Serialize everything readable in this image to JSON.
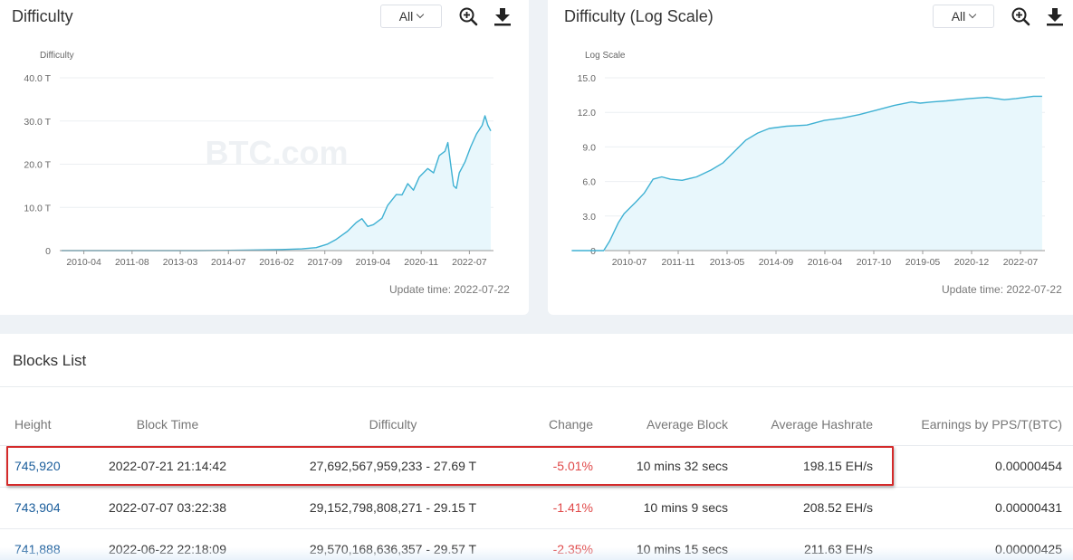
{
  "left_chart": {
    "title": "Difficulty",
    "range_selected": "All",
    "update_time": "Update time: 2022-07-22",
    "watermark": "BTC.com",
    "zoom_icon": "zoom-in-icon",
    "download_icon": "download-icon",
    "chart_data": {
      "type": "area",
      "ylabel": "Difficulty",
      "ylim": [
        0,
        40
      ],
      "y_ticks": [
        "0",
        "10.0 T",
        "20.0 T",
        "30.0 T",
        "40.0 T"
      ],
      "x_ticks": [
        "2010-04",
        "2011-08",
        "2013-03",
        "2014-07",
        "2016-02",
        "2017-09",
        "2019-04",
        "2020-11",
        "2022-07"
      ],
      "grid": true,
      "legend": "none",
      "series": [
        {
          "x": [
            "2010-01",
            "2014-01",
            "2015-06",
            "2016-06",
            "2017-01",
            "2017-06",
            "2017-10",
            "2018-01",
            "2018-05",
            "2018-08",
            "2018-10",
            "2018-12",
            "2019-02",
            "2019-05",
            "2019-07",
            "2019-10",
            "2019-12",
            "2020-02",
            "2020-04",
            "2020-06",
            "2020-09",
            "2020-11",
            "2021-01",
            "2021-03",
            "2021-04",
            "2021-05",
            "2021-06",
            "2021-07",
            "2021-08",
            "2021-10",
            "2021-12",
            "2022-02",
            "2022-04",
            "2022-05",
            "2022-06",
            "2022-07"
          ],
          "values": [
            0,
            0.002,
            0.1,
            0.25,
            0.4,
            0.7,
            1.5,
            2.6,
            4.5,
            6.5,
            7.4,
            5.6,
            6.0,
            7.5,
            10.5,
            13.0,
            12.9,
            15.5,
            14.0,
            17.0,
            19.0,
            18.0,
            22.0,
            23.0,
            25.0,
            20.0,
            15.0,
            14.4,
            18.0,
            20.5,
            24.0,
            27.0,
            29.0,
            31.2,
            29.0,
            27.7
          ]
        }
      ]
    }
  },
  "right_chart": {
    "title": "Difficulty (Log Scale)",
    "range_selected": "All",
    "update_time": "Update time: 2022-07-22",
    "watermark": "BTC.com",
    "zoom_icon": "zoom-in-icon",
    "download_icon": "download-icon",
    "chart_data": {
      "type": "area",
      "ylabel": "Log Scale",
      "ylim": [
        0,
        15
      ],
      "y_ticks": [
        "0",
        "3.0",
        "6.0",
        "9.0",
        "12.0",
        "15.0"
      ],
      "x_ticks": [
        "2010-07",
        "2011-11",
        "2013-05",
        "2014-09",
        "2016-04",
        "2017-10",
        "2019-05",
        "2020-12",
        "2022-07"
      ],
      "grid": true,
      "legend": "none",
      "series": [
        {
          "x": [
            "2009-01",
            "2009-12",
            "2010-02",
            "2010-05",
            "2010-07",
            "2010-11",
            "2011-02",
            "2011-05",
            "2011-08",
            "2011-11",
            "2012-03",
            "2012-08",
            "2013-01",
            "2013-05",
            "2013-09",
            "2014-01",
            "2014-05",
            "2014-09",
            "2015-03",
            "2015-10",
            "2016-04",
            "2016-10",
            "2017-04",
            "2017-10",
            "2018-04",
            "2018-10",
            "2019-01",
            "2019-05",
            "2019-10",
            "2020-06",
            "2020-12",
            "2021-06",
            "2021-10",
            "2022-04",
            "2022-07"
          ],
          "values": [
            0,
            0,
            0.8,
            2.4,
            3.2,
            4.2,
            5.0,
            6.2,
            6.4,
            6.2,
            6.1,
            6.4,
            7.0,
            7.6,
            8.6,
            9.6,
            10.2,
            10.6,
            10.8,
            10.9,
            11.3,
            11.5,
            11.8,
            12.2,
            12.6,
            12.9,
            12.8,
            12.9,
            13.0,
            13.2,
            13.3,
            13.1,
            13.2,
            13.4,
            13.4
          ]
        }
      ]
    }
  },
  "blocks": {
    "title": "Blocks List",
    "columns": [
      "Height",
      "Block Time",
      "Difficulty",
      "Change",
      "Average Block",
      "Average Hashrate",
      "Earnings by PPS/T(BTC)"
    ],
    "rows": [
      [
        "745,920",
        "2022-07-21 21:14:42",
        "27,692,567,959,233 - 27.69 T",
        "-5.01%",
        "10 mins 32 secs",
        "198.15 EH/s",
        "0.00000454"
      ],
      [
        "743,904",
        "2022-07-07 03:22:38",
        "29,152,798,808,271 - 29.15 T",
        "-1.41%",
        "10 mins 9 secs",
        "208.52 EH/s",
        "0.00000431"
      ],
      [
        "741,888",
        "2022-06-22 22:18:09",
        "29,570,168,636,357 - 29.57 T",
        "-2.35%",
        "10 mins 15 secs",
        "211.63 EH/s",
        "0.00000425"
      ]
    ]
  },
  "colors": {
    "line": "#3fb1d3",
    "area": "#e8f7fc",
    "negative": "#e04848",
    "link": "#1a5d9b",
    "highlight": "#d42a2a"
  }
}
